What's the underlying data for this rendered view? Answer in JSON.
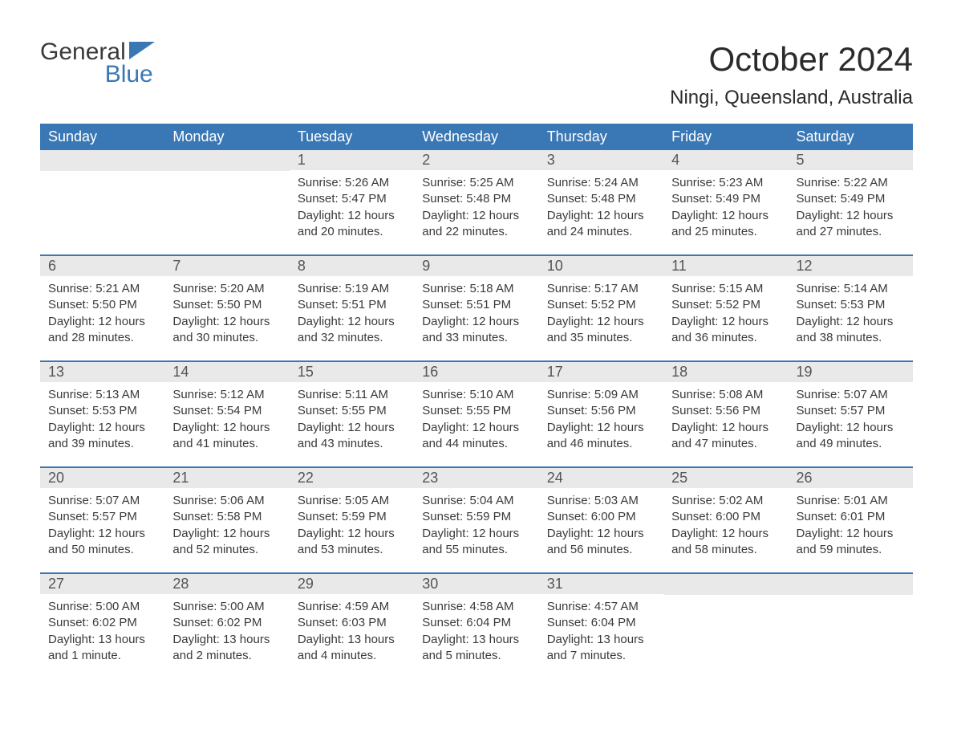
{
  "logo": {
    "top": "General",
    "bottom": "Blue",
    "flag_color": "#3a78b5"
  },
  "title": "October 2024",
  "location": "Ningi, Queensland, Australia",
  "colors": {
    "header_bg": "#3a78b5",
    "header_text": "#ffffff",
    "daynum_bg": "#e9e9e9",
    "daynum_text": "#555555",
    "body_text": "#3a3a3a",
    "week_border": "#3a78b5",
    "page_bg": "#ffffff"
  },
  "typography": {
    "title_fontsize": 42,
    "location_fontsize": 24,
    "dow_fontsize": 18,
    "daynum_fontsize": 18,
    "body_fontsize": 15
  },
  "days_of_week": [
    "Sunday",
    "Monday",
    "Tuesday",
    "Wednesday",
    "Thursday",
    "Friday",
    "Saturday"
  ],
  "weeks": [
    [
      {
        "n": "",
        "sunrise": "",
        "sunset": "",
        "daylight": ""
      },
      {
        "n": "",
        "sunrise": "",
        "sunset": "",
        "daylight": ""
      },
      {
        "n": "1",
        "sunrise": "Sunrise: 5:26 AM",
        "sunset": "Sunset: 5:47 PM",
        "daylight": "Daylight: 12 hours and 20 minutes."
      },
      {
        "n": "2",
        "sunrise": "Sunrise: 5:25 AM",
        "sunset": "Sunset: 5:48 PM",
        "daylight": "Daylight: 12 hours and 22 minutes."
      },
      {
        "n": "3",
        "sunrise": "Sunrise: 5:24 AM",
        "sunset": "Sunset: 5:48 PM",
        "daylight": "Daylight: 12 hours and 24 minutes."
      },
      {
        "n": "4",
        "sunrise": "Sunrise: 5:23 AM",
        "sunset": "Sunset: 5:49 PM",
        "daylight": "Daylight: 12 hours and 25 minutes."
      },
      {
        "n": "5",
        "sunrise": "Sunrise: 5:22 AM",
        "sunset": "Sunset: 5:49 PM",
        "daylight": "Daylight: 12 hours and 27 minutes."
      }
    ],
    [
      {
        "n": "6",
        "sunrise": "Sunrise: 5:21 AM",
        "sunset": "Sunset: 5:50 PM",
        "daylight": "Daylight: 12 hours and 28 minutes."
      },
      {
        "n": "7",
        "sunrise": "Sunrise: 5:20 AM",
        "sunset": "Sunset: 5:50 PM",
        "daylight": "Daylight: 12 hours and 30 minutes."
      },
      {
        "n": "8",
        "sunrise": "Sunrise: 5:19 AM",
        "sunset": "Sunset: 5:51 PM",
        "daylight": "Daylight: 12 hours and 32 minutes."
      },
      {
        "n": "9",
        "sunrise": "Sunrise: 5:18 AM",
        "sunset": "Sunset: 5:51 PM",
        "daylight": "Daylight: 12 hours and 33 minutes."
      },
      {
        "n": "10",
        "sunrise": "Sunrise: 5:17 AM",
        "sunset": "Sunset: 5:52 PM",
        "daylight": "Daylight: 12 hours and 35 minutes."
      },
      {
        "n": "11",
        "sunrise": "Sunrise: 5:15 AM",
        "sunset": "Sunset: 5:52 PM",
        "daylight": "Daylight: 12 hours and 36 minutes."
      },
      {
        "n": "12",
        "sunrise": "Sunrise: 5:14 AM",
        "sunset": "Sunset: 5:53 PM",
        "daylight": "Daylight: 12 hours and 38 minutes."
      }
    ],
    [
      {
        "n": "13",
        "sunrise": "Sunrise: 5:13 AM",
        "sunset": "Sunset: 5:53 PM",
        "daylight": "Daylight: 12 hours and 39 minutes."
      },
      {
        "n": "14",
        "sunrise": "Sunrise: 5:12 AM",
        "sunset": "Sunset: 5:54 PM",
        "daylight": "Daylight: 12 hours and 41 minutes."
      },
      {
        "n": "15",
        "sunrise": "Sunrise: 5:11 AM",
        "sunset": "Sunset: 5:55 PM",
        "daylight": "Daylight: 12 hours and 43 minutes."
      },
      {
        "n": "16",
        "sunrise": "Sunrise: 5:10 AM",
        "sunset": "Sunset: 5:55 PM",
        "daylight": "Daylight: 12 hours and 44 minutes."
      },
      {
        "n": "17",
        "sunrise": "Sunrise: 5:09 AM",
        "sunset": "Sunset: 5:56 PM",
        "daylight": "Daylight: 12 hours and 46 minutes."
      },
      {
        "n": "18",
        "sunrise": "Sunrise: 5:08 AM",
        "sunset": "Sunset: 5:56 PM",
        "daylight": "Daylight: 12 hours and 47 minutes."
      },
      {
        "n": "19",
        "sunrise": "Sunrise: 5:07 AM",
        "sunset": "Sunset: 5:57 PM",
        "daylight": "Daylight: 12 hours and 49 minutes."
      }
    ],
    [
      {
        "n": "20",
        "sunrise": "Sunrise: 5:07 AM",
        "sunset": "Sunset: 5:57 PM",
        "daylight": "Daylight: 12 hours and 50 minutes."
      },
      {
        "n": "21",
        "sunrise": "Sunrise: 5:06 AM",
        "sunset": "Sunset: 5:58 PM",
        "daylight": "Daylight: 12 hours and 52 minutes."
      },
      {
        "n": "22",
        "sunrise": "Sunrise: 5:05 AM",
        "sunset": "Sunset: 5:59 PM",
        "daylight": "Daylight: 12 hours and 53 minutes."
      },
      {
        "n": "23",
        "sunrise": "Sunrise: 5:04 AM",
        "sunset": "Sunset: 5:59 PM",
        "daylight": "Daylight: 12 hours and 55 minutes."
      },
      {
        "n": "24",
        "sunrise": "Sunrise: 5:03 AM",
        "sunset": "Sunset: 6:00 PM",
        "daylight": "Daylight: 12 hours and 56 minutes."
      },
      {
        "n": "25",
        "sunrise": "Sunrise: 5:02 AM",
        "sunset": "Sunset: 6:00 PM",
        "daylight": "Daylight: 12 hours and 58 minutes."
      },
      {
        "n": "26",
        "sunrise": "Sunrise: 5:01 AM",
        "sunset": "Sunset: 6:01 PM",
        "daylight": "Daylight: 12 hours and 59 minutes."
      }
    ],
    [
      {
        "n": "27",
        "sunrise": "Sunrise: 5:00 AM",
        "sunset": "Sunset: 6:02 PM",
        "daylight": "Daylight: 13 hours and 1 minute."
      },
      {
        "n": "28",
        "sunrise": "Sunrise: 5:00 AM",
        "sunset": "Sunset: 6:02 PM",
        "daylight": "Daylight: 13 hours and 2 minutes."
      },
      {
        "n": "29",
        "sunrise": "Sunrise: 4:59 AM",
        "sunset": "Sunset: 6:03 PM",
        "daylight": "Daylight: 13 hours and 4 minutes."
      },
      {
        "n": "30",
        "sunrise": "Sunrise: 4:58 AM",
        "sunset": "Sunset: 6:04 PM",
        "daylight": "Daylight: 13 hours and 5 minutes."
      },
      {
        "n": "31",
        "sunrise": "Sunrise: 4:57 AM",
        "sunset": "Sunset: 6:04 PM",
        "daylight": "Daylight: 13 hours and 7 minutes."
      },
      {
        "n": "",
        "sunrise": "",
        "sunset": "",
        "daylight": ""
      },
      {
        "n": "",
        "sunrise": "",
        "sunset": "",
        "daylight": ""
      }
    ]
  ]
}
